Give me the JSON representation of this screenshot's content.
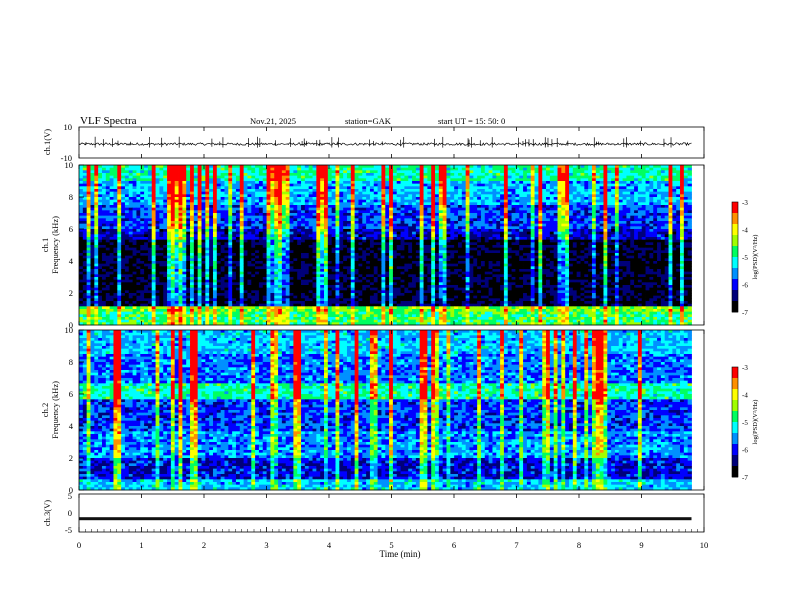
{
  "header": {
    "title": "VLF  Spectra",
    "date": "Nov.21, 2025",
    "station": "station=GAK",
    "start": "start  UT  =    15: 50: 0"
  },
  "colors": {
    "colormap": [
      "#000000",
      "#00007a",
      "#0000ff",
      "#0090ff",
      "#00ffff",
      "#00ff60",
      "#a0ff00",
      "#ffff00",
      "#ff9000",
      "#ff0000",
      "#ffffff"
    ],
    "trace": "#000000",
    "axis": "#000000"
  },
  "chart_data": [
    {
      "type": "line",
      "id": "ch1-waveform",
      "ylabel": "ch.1(V)",
      "ylim": [
        -10,
        10
      ],
      "yticks": [
        "10",
        "-10"
      ],
      "xlim": [
        0,
        10
      ],
      "description_values": "noise trace around about -1 V with spikes",
      "baseline": -1
    },
    {
      "type": "heatmap",
      "id": "ch1-spectrogram",
      "ylabel": "ch.1\nFrequency  (kHz)",
      "ylim": [
        0,
        10
      ],
      "yticks": [
        "10",
        "8",
        "6",
        "4",
        "2",
        "0"
      ],
      "xlim": [
        0,
        9.8
      ],
      "colorbar": {
        "label": "log(PSD)(V²/Hz)",
        "range": [
          -7,
          -3
        ],
        "ticks": [
          "-3",
          "-4",
          "-5",
          "-6",
          "-7"
        ]
      },
      "bands": [
        {
          "from": 0.0,
          "to": 0.8,
          "level": 0.55
        },
        {
          "from": 0.8,
          "to": 1.1,
          "level": 0.62
        },
        {
          "from": 1.1,
          "to": 5.3,
          "level": 0.08
        },
        {
          "from": 5.3,
          "to": 6.0,
          "level": 0.2
        },
        {
          "from": 6.0,
          "to": 7.5,
          "level": 0.28
        },
        {
          "from": 7.5,
          "to": 9.0,
          "level": 0.38
        },
        {
          "from": 9.0,
          "to": 10.0,
          "level": 0.5
        }
      ]
    },
    {
      "type": "heatmap",
      "id": "ch2-spectrogram",
      "ylabel": "ch.2\nFrequency  (kHz)",
      "ylim": [
        0,
        10
      ],
      "yticks": [
        "10",
        "8",
        "6",
        "4",
        "2",
        "0"
      ],
      "xlim": [
        0,
        9.8
      ],
      "colorbar": {
        "label": "log(PSD)(V²/Hz)",
        "range": [
          -7,
          -3
        ],
        "ticks": [
          "-3",
          "-4",
          "-5",
          "-6",
          "-7"
        ]
      },
      "bands": [
        {
          "from": 0.0,
          "to": 0.6,
          "level": 0.4
        },
        {
          "from": 0.6,
          "to": 2.0,
          "level": 0.22
        },
        {
          "from": 2.0,
          "to": 3.6,
          "level": 0.35
        },
        {
          "from": 3.6,
          "to": 5.6,
          "level": 0.28
        },
        {
          "from": 5.6,
          "to": 6.6,
          "level": 0.5
        },
        {
          "from": 6.6,
          "to": 8.5,
          "level": 0.32
        },
        {
          "from": 8.5,
          "to": 10.0,
          "level": 0.4
        }
      ]
    },
    {
      "type": "line",
      "id": "ch3-waveform",
      "ylabel": "ch.3(V)",
      "ylim": [
        -5,
        5
      ],
      "yticks": [
        "5",
        "0",
        "-5"
      ],
      "xlim": [
        0,
        10
      ],
      "baseline": -1.5
    }
  ],
  "xaxis": {
    "label": "Time  (min)",
    "ticks": [
      "0",
      "1",
      "2",
      "3",
      "4",
      "5",
      "6",
      "7",
      "8",
      "9",
      "10"
    ],
    "range": [
      0,
      10
    ]
  }
}
